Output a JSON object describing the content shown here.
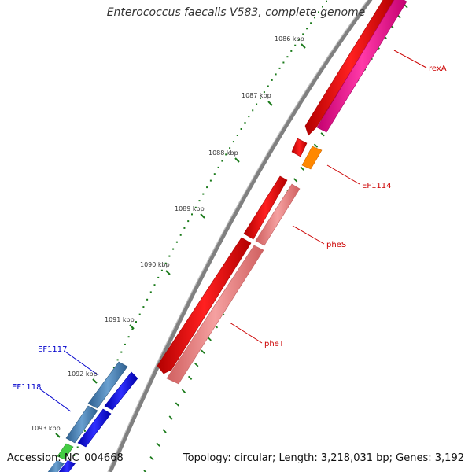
{
  "title": "Enterococcus faecalis V583, complete genome",
  "footer": {
    "accession": "Accession: NC_004668",
    "topology": "Topology: circular; Length: 3,218,031 bp; Genes: 3,192"
  },
  "ticks": [
    "1086 kbp",
    "1087 kbp",
    "1088 kbp",
    "1089 kbp",
    "1090 kbp",
    "1091 kbp",
    "1092 kbp",
    "1093 kbp"
  ],
  "colors": {
    "backbone": "#888888",
    "tick_marks": "#1a7a1a",
    "red_gene": "#ff0000",
    "pink_gene": "#ff1a9a",
    "orange_gene": "#ff8800",
    "salmon_gene": "#f08080",
    "steelblue_gene": "#4682b4",
    "blue_gene": "#0000ff",
    "red_label": "#cc0000",
    "blue_label": "#0000cc"
  },
  "genes": [
    {
      "name": "rexA",
      "color": "#cc0000"
    },
    {
      "name": "EF1114",
      "color": "#cc0000"
    },
    {
      "name": "pheS",
      "color": "#cc0000"
    },
    {
      "name": "pheT",
      "color": "#cc0000"
    },
    {
      "name": "EF1117",
      "color": "#0000cc"
    },
    {
      "name": "EF1118",
      "color": "#0000cc"
    }
  ]
}
